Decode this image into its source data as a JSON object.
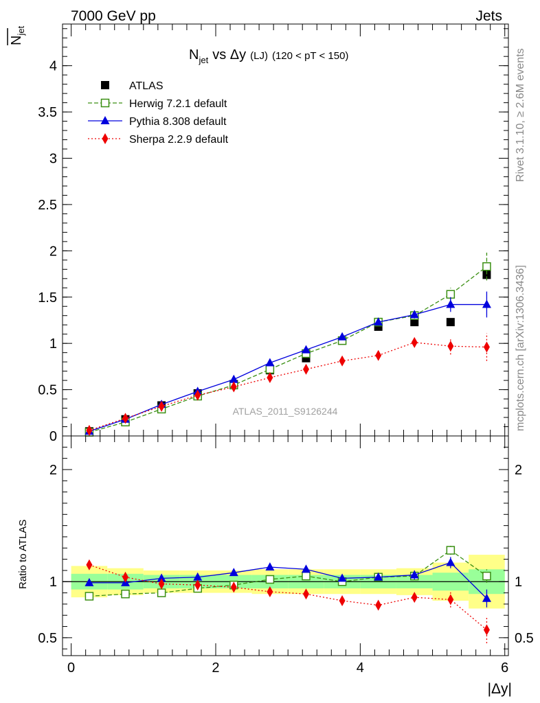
{
  "header": {
    "left": "7000 GeV pp",
    "right": "Jets"
  },
  "title": {
    "main": "N",
    "main_sub": "jet",
    "vs": "vs Δy",
    "tag": "(LJ)",
    "range": "(120 < pT < 150)"
  },
  "ylabel": {
    "bar": "N",
    "bar_sub": "jet"
  },
  "side_labels": {
    "rivet": "Rivet 3.1.10, ≥ 2.6M events",
    "mcplots": "mcplots.cern.ch [arXiv:1306.3436]"
  },
  "analysis_tag": "ATLAS_2011_S9126244",
  "ratio_ylabel": "Ratio to ATLAS",
  "xlabel": "|Δy|",
  "colors": {
    "data": "#000000",
    "herwig": "#3a8f12",
    "pythia": "#0000dd",
    "sherpa": "#ee0000",
    "band_inner": "#99ff99",
    "band_outer": "#ffff88"
  },
  "chart_data": [
    {
      "type": "scatter",
      "panel": "main",
      "ylim": [
        0,
        4.45
      ],
      "xlim": [
        -0.12,
        6.05
      ],
      "yticks": [
        {
          "v": 0,
          "label": "0"
        },
        {
          "v": 0.5,
          "label": "0.5"
        },
        {
          "v": 1,
          "label": "1"
        },
        {
          "v": 1.5,
          "label": "1.5"
        },
        {
          "v": 2,
          "label": "2"
        },
        {
          "v": 2.5,
          "label": "2.5"
        },
        {
          "v": 3,
          "label": "3"
        },
        {
          "v": 3.5,
          "label": "3.5"
        },
        {
          "v": 4,
          "label": "4"
        }
      ],
      "x": [
        0.25,
        0.75,
        1.25,
        1.75,
        2.25,
        2.75,
        3.25,
        3.75,
        4.25,
        4.75,
        5.25,
        5.75
      ],
      "series": [
        {
          "name": "ATLAS",
          "key": "data",
          "style": "data",
          "values": [
            0.05,
            0.18,
            0.33,
            0.46,
            0.56,
            0.71,
            0.84,
            1.03,
            1.18,
            1.23,
            1.23,
            1.74
          ],
          "err": [
            0.01,
            0.01,
            0.01,
            0.01,
            0.01,
            0.02,
            0.02,
            0.02,
            0.02,
            0.02,
            0.02,
            0.03
          ]
        },
        {
          "name": "Herwig 7.2.1 default",
          "key": "herwig",
          "style": "herwig",
          "values": [
            0.04,
            0.15,
            0.29,
            0.43,
            0.55,
            0.72,
            0.89,
            1.03,
            1.23,
            1.3,
            1.53,
            1.83
          ],
          "err": [
            0,
            0,
            0,
            0,
            0,
            0,
            0,
            0,
            0.02,
            0.03,
            0.07,
            0.15
          ]
        },
        {
          "name": "Pythia 8.308 default",
          "key": "pythia",
          "style": "pythia",
          "values": [
            0.05,
            0.18,
            0.34,
            0.48,
            0.61,
            0.79,
            0.93,
            1.07,
            1.23,
            1.31,
            1.42,
            1.42
          ],
          "err": [
            0,
            0,
            0,
            0,
            0,
            0,
            0,
            0,
            0.02,
            0.04,
            0.08,
            0.14
          ]
        },
        {
          "name": "Sherpa 2.2.9 default",
          "key": "sherpa",
          "style": "sherpa",
          "values": [
            0.06,
            0.19,
            0.32,
            0.44,
            0.53,
            0.63,
            0.72,
            0.81,
            0.87,
            1.01,
            0.97,
            0.96
          ],
          "err": [
            0,
            0,
            0,
            0,
            0,
            0,
            0.02,
            0.02,
            0.02,
            0.05,
            0.09,
            0.15
          ]
        }
      ]
    },
    {
      "type": "scatter",
      "panel": "ratio",
      "ylim": [
        0.34,
        2.3
      ],
      "xlim": [
        -0.12,
        6.05
      ],
      "yticks": [
        {
          "v": 0.5,
          "label": "0.5"
        },
        {
          "v": 1,
          "label": "1"
        },
        {
          "v": 2,
          "label": "2"
        }
      ],
      "xticks": [
        {
          "v": 0,
          "label": "0"
        },
        {
          "v": 2,
          "label": "2"
        },
        {
          "v": 4,
          "label": "4"
        },
        {
          "v": 6,
          "label": "6"
        }
      ],
      "bins": [
        0,
        0.5,
        1,
        1.5,
        2,
        2.5,
        3,
        3.5,
        4,
        4.5,
        5,
        5.5,
        6
      ],
      "band_inner": [
        0.07,
        0.07,
        0.06,
        0.06,
        0.06,
        0.06,
        0.06,
        0.06,
        0.06,
        0.06,
        0.08,
        0.11
      ],
      "band_outer": [
        0.14,
        0.12,
        0.1,
        0.1,
        0.1,
        0.11,
        0.11,
        0.11,
        0.11,
        0.12,
        0.17,
        0.24
      ],
      "x": [
        0.25,
        0.75,
        1.25,
        1.75,
        2.25,
        2.75,
        3.25,
        3.75,
        4.25,
        4.75,
        5.25,
        5.75
      ],
      "series": [
        {
          "name": "Herwig 7.2.1 default",
          "key": "herwig",
          "style": "herwig",
          "values": [
            0.87,
            0.89,
            0.9,
            0.94,
            0.97,
            1.02,
            1.05,
            1.0,
            1.04,
            1.05,
            1.28,
            1.05
          ],
          "err": [
            0.03,
            0,
            0,
            0,
            0,
            0,
            0,
            0,
            0.02,
            0.03,
            0.04,
            0.06
          ]
        },
        {
          "name": "Pythia 8.308 default",
          "key": "pythia",
          "style": "pythia",
          "values": [
            0.99,
            0.99,
            1.03,
            1.04,
            1.08,
            1.13,
            1.11,
            1.03,
            1.04,
            1.06,
            1.17,
            0.85
          ],
          "err": [
            0.03,
            0,
            0,
            0,
            0,
            0,
            0,
            0,
            0.02,
            0.04,
            0.05,
            0.08
          ]
        },
        {
          "name": "Sherpa 2.2.9 default",
          "key": "sherpa",
          "style": "sherpa",
          "values": [
            1.15,
            1.04,
            0.98,
            0.97,
            0.95,
            0.91,
            0.89,
            0.83,
            0.79,
            0.86,
            0.84,
            0.57
          ],
          "err": [
            0.03,
            0,
            0,
            0,
            0,
            0,
            0,
            0.02,
            0.02,
            0.04,
            0.07,
            0.12
          ]
        }
      ]
    }
  ]
}
